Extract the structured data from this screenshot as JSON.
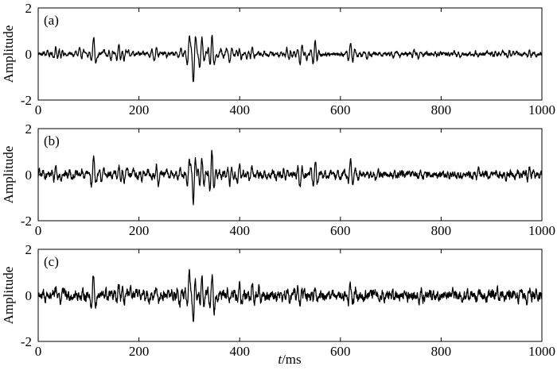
{
  "chart_data": [
    {
      "type": "line",
      "panel_label": "(a)",
      "ylabel": "Amplitude",
      "xlabel": "",
      "xlim": [
        0,
        1000
      ],
      "ylim": [
        -2,
        2
      ],
      "xticks": [
        "0",
        "200",
        "400",
        "600",
        "800",
        "1000"
      ],
      "yticks": [
        "2",
        "0",
        "-2"
      ],
      "grid": false,
      "noise_level": 0.06,
      "series": [
        {
          "x": [
            35,
            45,
            110,
            160,
            170,
            235,
            300,
            308,
            325,
            345,
            380,
            400,
            425,
            520,
            550,
            620,
            630,
            760,
            975
          ],
          "y": [
            0.3,
            -0.2,
            0.65,
            0.3,
            -0.3,
            0.4,
            0.9,
            -1.1,
            0.7,
            0.85,
            -0.5,
            0.3,
            0.25,
            -0.35,
            0.6,
            0.45,
            0.2,
            0.15,
            0.15
          ]
        }
      ]
    },
    {
      "type": "line",
      "panel_label": "(b)",
      "ylabel": "Amplitude",
      "xlabel": "",
      "xlim": [
        0,
        1000
      ],
      "ylim": [
        -2,
        2
      ],
      "xticks": [
        "0",
        "200",
        "400",
        "600",
        "800",
        "1000"
      ],
      "yticks": [
        "2",
        "0",
        "-2"
      ],
      "grid": false,
      "noise_level": 0.1,
      "series": [
        {
          "x": [
            35,
            45,
            110,
            160,
            170,
            235,
            300,
            308,
            325,
            345,
            380,
            400,
            425,
            520,
            550,
            620,
            630,
            760,
            975
          ],
          "y": [
            0.35,
            -0.25,
            0.8,
            0.35,
            -0.3,
            0.45,
            0.85,
            -1.3,
            0.75,
            0.95,
            -0.45,
            0.4,
            0.3,
            -0.35,
            0.55,
            0.5,
            0.25,
            0.2,
            0.25
          ]
        }
      ]
    },
    {
      "type": "line",
      "panel_label": "(c)",
      "ylabel": "Amplitude",
      "xlabel": "t/ms",
      "xlim": [
        0,
        1000
      ],
      "ylim": [
        -2,
        2
      ],
      "xticks": [
        "0",
        "200",
        "400",
        "600",
        "800",
        "1000"
      ],
      "yticks": [
        "2",
        "0",
        "-2"
      ],
      "grid": false,
      "noise_level": 0.15,
      "series": [
        {
          "x": [
            35,
            45,
            110,
            160,
            170,
            235,
            300,
            308,
            325,
            345,
            380,
            400,
            425,
            520,
            550,
            620,
            630,
            760,
            975
          ],
          "y": [
            0.3,
            -0.3,
            0.85,
            0.35,
            -0.35,
            0.45,
            1.0,
            -1.2,
            0.6,
            0.85,
            -0.4,
            0.4,
            0.35,
            -0.35,
            0.5,
            0.55,
            0.3,
            0.25,
            0.35
          ]
        }
      ]
    }
  ]
}
